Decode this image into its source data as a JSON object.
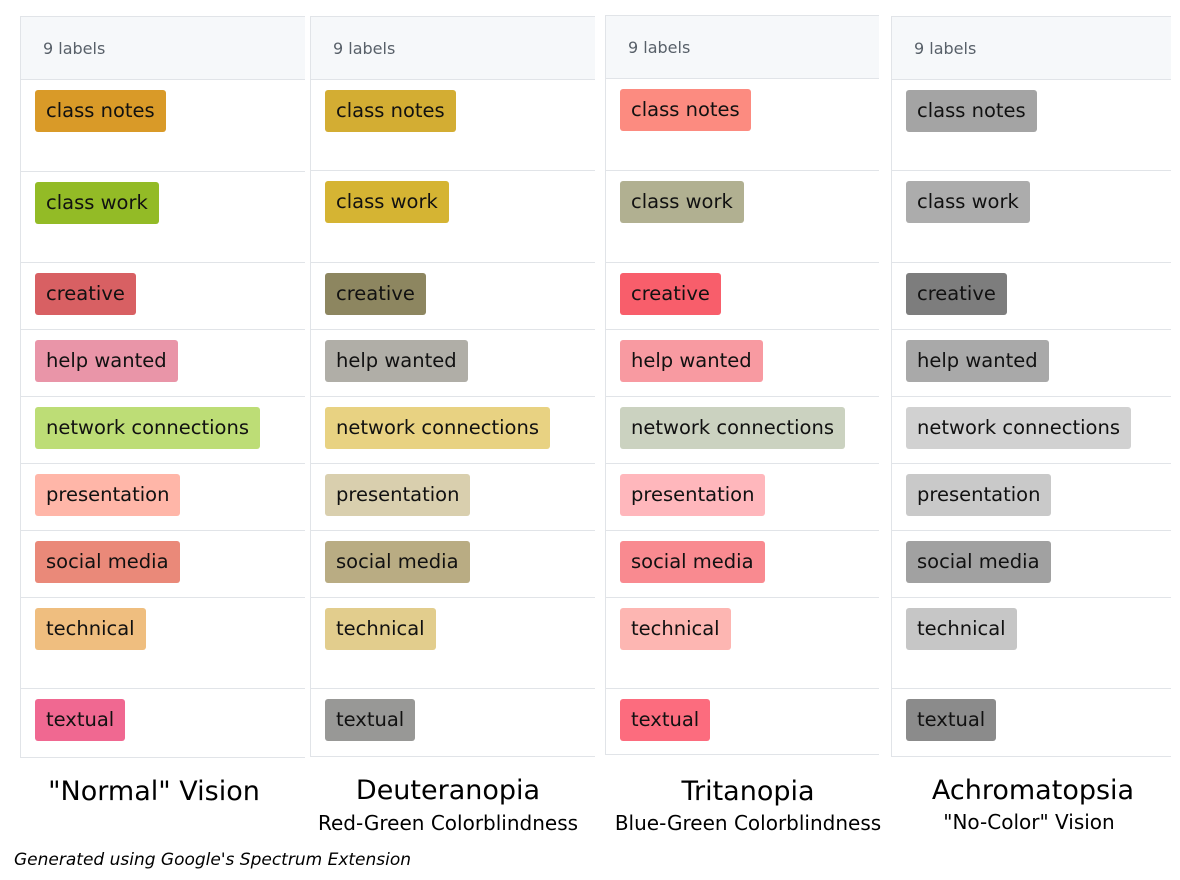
{
  "panels": [
    {
      "header": "9 labels",
      "labels": [
        {
          "text": "class notes",
          "color": "#d99a28"
        },
        {
          "text": "class work",
          "color": "#93bb26"
        },
        {
          "text": "creative",
          "color": "#d86063"
        },
        {
          "text": "help wanted",
          "color": "#e995a8"
        },
        {
          "text": "network connections",
          "color": "#bddd76"
        },
        {
          "text": "presentation",
          "color": "#ffb6a8"
        },
        {
          "text": "social media",
          "color": "#ea8979"
        },
        {
          "text": "technical",
          "color": "#efbe7f"
        },
        {
          "text": "textual",
          "color": "#f06891"
        }
      ],
      "title": "\"Normal\" Vision",
      "subtitle": ""
    },
    {
      "header": "9 labels",
      "labels": [
        {
          "text": "class notes",
          "color": "#d3ad33"
        },
        {
          "text": "class work",
          "color": "#d5b433"
        },
        {
          "text": "creative",
          "color": "#8d8660"
        },
        {
          "text": "help wanted",
          "color": "#b0aea7"
        },
        {
          "text": "network connections",
          "color": "#e8d282"
        },
        {
          "text": "presentation",
          "color": "#d9cfae"
        },
        {
          "text": "social media",
          "color": "#b9ac83"
        },
        {
          "text": "technical",
          "color": "#e2cd8d"
        },
        {
          "text": "textual",
          "color": "#989896"
        }
      ],
      "title": "Deuteranopia",
      "subtitle": "Red-Green Colorblindness"
    },
    {
      "header": "9 labels",
      "labels": [
        {
          "text": "class notes",
          "color": "#fc8b80"
        },
        {
          "text": "class work",
          "color": "#b1b091"
        },
        {
          "text": "creative",
          "color": "#f85e6b"
        },
        {
          "text": "help wanted",
          "color": "#f89aa1"
        },
        {
          "text": "network connections",
          "color": "#cbd2c0"
        },
        {
          "text": "presentation",
          "color": "#ffb7bc"
        },
        {
          "text": "social media",
          "color": "#f98a90"
        },
        {
          "text": "technical",
          "color": "#fdb6b2"
        },
        {
          "text": "textual",
          "color": "#fc6c7e"
        }
      ],
      "title": "Tritanopia",
      "subtitle": "Blue-Green Colorblindness"
    },
    {
      "header": "9 labels",
      "labels": [
        {
          "text": "class notes",
          "color": "#a4a4a4"
        },
        {
          "text": "class work",
          "color": "#acacac"
        },
        {
          "text": "creative",
          "color": "#7d7d7d"
        },
        {
          "text": "help wanted",
          "color": "#a9a9a9"
        },
        {
          "text": "network connections",
          "color": "#d1d1d1"
        },
        {
          "text": "presentation",
          "color": "#c9c9c9"
        },
        {
          "text": "social media",
          "color": "#a1a1a1"
        },
        {
          "text": "technical",
          "color": "#c6c6c6"
        },
        {
          "text": "textual",
          "color": "#8b8b8b"
        }
      ],
      "title": "Achromatopsia",
      "subtitle": "\"No-Color\" Vision"
    }
  ],
  "footer": "Generated using Google's Spectrum Extension"
}
